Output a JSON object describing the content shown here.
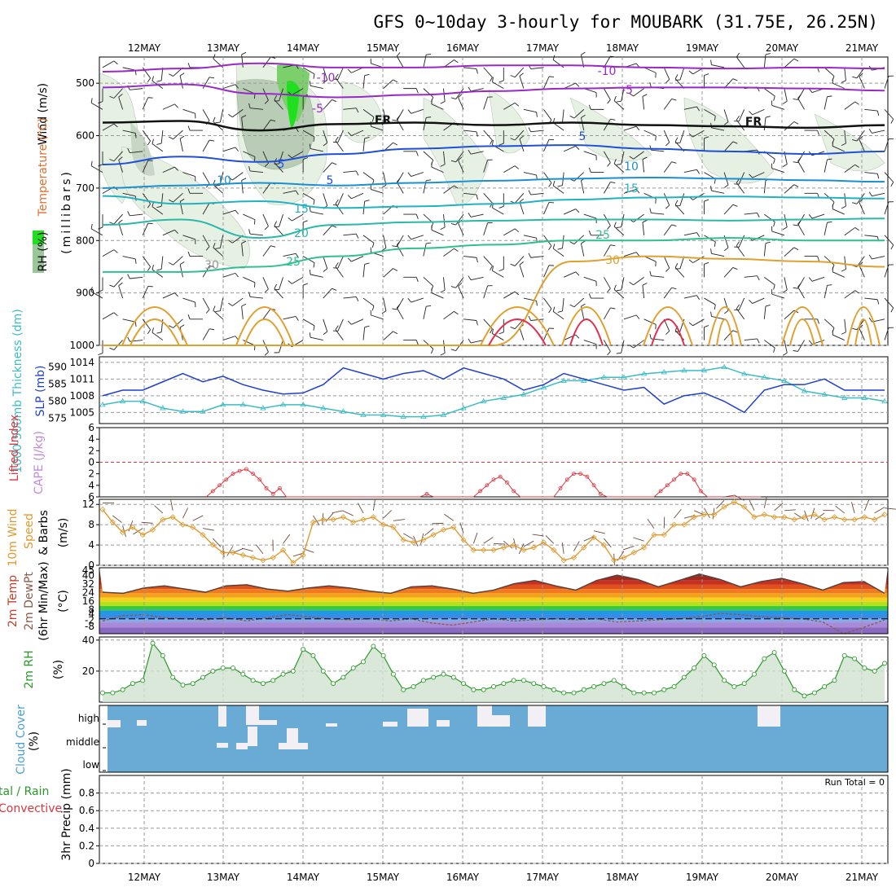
{
  "title": "GFS 0~10day 3-hourly for MOUBARK (31.75E, 26.25N)",
  "dates": [
    "12MAY",
    "13MAY",
    "14MAY",
    "15MAY",
    "16MAY",
    "17MAY",
    "18MAY",
    "19MAY",
    "20MAY",
    "21MAY"
  ],
  "panel_labels": {
    "upper": {
      "rh": "RH (%)",
      "temp": "Temperature (°C)",
      "wind": "Wind (m/s)",
      "pressure": "(millibars)"
    },
    "slp": {
      "thick": "1000-500mb Thickness (dm)",
      "slp": "SLP (mb)"
    },
    "cape": {
      "li": "Lifted Index",
      "cape": "CAPE (J/kg)"
    },
    "wind10": {
      "l1": "10m Wind",
      "l2": "Speed",
      "l3": "& Barbs",
      "unit": "(m/s)"
    },
    "temp2m": {
      "l1": "2m Temp",
      "l2": "2m DewPt",
      "l3": "(6hr Min/Max)",
      "unit": "(°C)"
    },
    "rh2m": {
      "label": "2m RH",
      "unit": "(%)"
    },
    "cloud": {
      "label": "Cloud Cover",
      "unit": "(%)"
    },
    "precip": {
      "l1": "tal / Rain",
      "l2": "Convective",
      "l3": "3hr Precip (mm)",
      "run_total": "Run Total = 0"
    }
  },
  "colors": {
    "slp": "#1f3fcf",
    "thickness": "#3bbcc4",
    "li": "#e0343c",
    "wind_speed": "#e09a30",
    "rh": "#2a9a2a",
    "rh_fill": "#cfe2cf",
    "cloud": "#6aabd6",
    "cloud_gap": "#f2f0f4",
    "dewpt": "#8a5a4a",
    "temp_fill": "#5a4038"
  },
  "chart_data": [
    {
      "type": "contour",
      "name": "upper_air",
      "ylim": [
        1000,
        450
      ],
      "yticks": [
        500,
        600,
        700,
        800,
        900,
        1000
      ],
      "contour_labels": [
        "-10",
        "-10",
        "-5",
        "-5",
        "FR",
        "FR",
        "5",
        "5",
        "5",
        "10",
        "10",
        "15",
        "15",
        "20",
        "25",
        "25",
        "30",
        "30"
      ],
      "temperature_lines": [
        {
          "label": "-10",
          "color": "#9a28c8",
          "p": [
            478,
            472,
            462,
            470,
            470,
            466,
            466,
            470,
            472,
            470,
            472
          ]
        },
        {
          "label": "-5",
          "color": "#9a28c8",
          "p": [
            508,
            502,
            520,
            527,
            522,
            515,
            510,
            508,
            508,
            510,
            514
          ]
        },
        {
          "label": "FR",
          "color": "#111111",
          "p": [
            575,
            572,
            590,
            578,
            575,
            580,
            575,
            580,
            582,
            585,
            580
          ]
        },
        {
          "label": "5",
          "color": "#1f4fd8",
          "p": [
            655,
            640,
            650,
            635,
            625,
            620,
            618,
            625,
            630,
            635,
            630
          ]
        },
        {
          "label": "10",
          "color": "#1a90d0",
          "p": [
            700,
            695,
            690,
            695,
            690,
            686,
            682,
            680,
            682,
            685,
            688
          ]
        },
        {
          "label": "15",
          "color": "#21b2c0",
          "p": [
            715,
            730,
            725,
            738,
            735,
            730,
            722,
            718,
            716,
            718,
            720
          ]
        },
        {
          "label": "20",
          "color": "#2ab8a8",
          "p": [
            770,
            760,
            795,
            770,
            765,
            762,
            760,
            760,
            762,
            760,
            758
          ]
        },
        {
          "label": "25",
          "color": "#2fbf90",
          "p": [
            860,
            860,
            850,
            830,
            815,
            808,
            800,
            800,
            795,
            800,
            800
          ]
        },
        {
          "label": "30",
          "color": "#e0a030",
          "p": [
            1000,
            1000,
            1000,
            1000,
            1000,
            1000,
            840,
            830,
            835,
            840,
            850
          ]
        }
      ]
    },
    {
      "type": "line",
      "name": "slp_thickness",
      "x": [
        0,
        6,
        12,
        18,
        24,
        30,
        36,
        42,
        48,
        54,
        60,
        66,
        72,
        78,
        84,
        90,
        96,
        102,
        108,
        114,
        120,
        126,
        132,
        138,
        144,
        150,
        156,
        162,
        168,
        174,
        180,
        186,
        192,
        198,
        204,
        210,
        216,
        222,
        228,
        234
      ],
      "series": [
        {
          "name": "SLP (mb)",
          "ylim": [
            1003,
            1015
          ],
          "yticks": [
            1005,
            1008,
            1011,
            1014
          ],
          "values": [
            1008,
            1009,
            1009,
            1010.5,
            1012,
            1010.5,
            1011.5,
            1010,
            1009,
            1008.3,
            1008.5,
            1010,
            1013,
            1012,
            1011,
            1012,
            1012.5,
            1011,
            1013,
            1012,
            1011,
            1009,
            1010,
            1012,
            1011,
            1010,
            1009,
            1009.5,
            1006.5,
            1008,
            1008.5,
            1007,
            1005,
            1009,
            1010,
            1010,
            1011,
            1009,
            1009,
            1009
          ]
        },
        {
          "name": "1000-500mb Thickness (dm)",
          "ylim": [
            573.5,
            593
          ],
          "yticks": [
            575,
            580,
            585,
            590
          ],
          "values": [
            579,
            580,
            580,
            578,
            577,
            577,
            579,
            579,
            578,
            579,
            579,
            578,
            577,
            576,
            576,
            575.5,
            575.5,
            576,
            578,
            580,
            581,
            582,
            584,
            586,
            586,
            587,
            587,
            588,
            588.5,
            589,
            589,
            590,
            588,
            587,
            586,
            583,
            582,
            581,
            581,
            580
          ]
        }
      ]
    },
    {
      "type": "line",
      "name": "lifted_index",
      "ylim": [
        6,
        -6
      ],
      "yticks": [
        6,
        4,
        2,
        0,
        -2,
        -4,
        -6
      ],
      "x": [
        31,
        33,
        35,
        37,
        39,
        41,
        43,
        45,
        47,
        49,
        51,
        53,
        55,
        57,
        59,
        61,
        63,
        65,
        67,
        69,
        71,
        73,
        75,
        77,
        79,
        81,
        83,
        85,
        87,
        89,
        91,
        93,
        95,
        97,
        99,
        101,
        103,
        105,
        107,
        109,
        111,
        113,
        115,
        117,
        119,
        121,
        123,
        125,
        127,
        129,
        131,
        133,
        135,
        137,
        139,
        141,
        143,
        145,
        147,
        149,
        151,
        153,
        155,
        157,
        159,
        161,
        163,
        165,
        167,
        169,
        171,
        173,
        175,
        177,
        179,
        181,
        183,
        185,
        187,
        189,
        191,
        193,
        195,
        197
      ],
      "values": [
        6,
        5,
        4,
        3,
        2,
        1.5,
        1.2,
        2,
        3,
        4.5,
        5.5,
        4.5,
        6,
        6,
        6,
        6,
        6,
        6,
        6,
        6,
        6,
        6,
        6,
        6,
        6,
        6,
        6,
        6,
        6,
        6,
        6,
        6,
        6,
        5.5,
        6,
        6,
        6,
        6,
        6,
        6,
        6,
        5,
        4,
        3,
        2.5,
        3.5,
        5,
        6,
        6,
        6,
        6,
        6,
        6,
        4.5,
        3,
        2,
        2,
        2.5,
        4,
        5.5,
        6,
        6,
        6,
        6,
        6,
        6,
        6,
        6,
        5,
        4,
        3,
        2,
        2,
        3,
        5,
        6,
        6,
        6,
        6,
        6,
        6,
        6,
        6,
        6
      ]
    },
    {
      "type": "line",
      "name": "wind_10m",
      "ylim": [
        0,
        13
      ],
      "yticks": [
        0,
        4,
        8,
        12
      ],
      "x": [
        0,
        3,
        6,
        9,
        12,
        15,
        18,
        21,
        24,
        27,
        30,
        33,
        36,
        39,
        42,
        45,
        48,
        51,
        54,
        57,
        60,
        63,
        66,
        69,
        72,
        75,
        78,
        81,
        84,
        87,
        90,
        93,
        96,
        99,
        102,
        105,
        108,
        111,
        114,
        117,
        120,
        123,
        126,
        129,
        132,
        135,
        138,
        141,
        144,
        147,
        150,
        153,
        156,
        159,
        162,
        165,
        168,
        171,
        174,
        177,
        180,
        183,
        186,
        189,
        192,
        195,
        198,
        201,
        204,
        207,
        210,
        213,
        216,
        219,
        222,
        225,
        228,
        231,
        234
      ],
      "values": [
        11,
        8.5,
        6.5,
        7.5,
        6,
        7,
        9,
        9.5,
        8,
        7.5,
        6,
        4,
        2.5,
        2.5,
        2,
        1.5,
        1,
        1.5,
        3,
        0.5,
        2,
        8.5,
        9,
        9,
        9.5,
        8.5,
        9,
        9.5,
        8,
        7.5,
        5,
        4.5,
        5,
        6,
        7,
        7.5,
        5,
        3,
        3,
        3,
        3.5,
        4,
        3,
        3.5,
        4.5,
        3,
        1,
        1.5,
        3.5,
        5.5,
        4,
        1,
        1.5,
        2.5,
        3.5,
        6,
        6,
        8,
        8,
        9.5,
        10,
        10,
        11.5,
        12.5,
        11.5,
        9.5,
        10,
        9.5,
        9.5,
        9,
        9.5,
        10,
        9,
        9.5,
        9,
        9,
        9.5,
        9,
        10
      ]
    },
    {
      "type": "area",
      "name": "temp_2m",
      "yticks": [
        -8,
        -2,
        4,
        8,
        16,
        24,
        32,
        40,
        45
      ],
      "ylim": [
        -14,
        48
      ],
      "temp": [
        25,
        24,
        29,
        31,
        28,
        25,
        31,
        32,
        28,
        26,
        29,
        31,
        29,
        26,
        24,
        30,
        31,
        28,
        24,
        27,
        33,
        36,
        31,
        27,
        36,
        41,
        37,
        30,
        36,
        42,
        37,
        30,
        35,
        38,
        33,
        27,
        34,
        35,
        24
      ],
      "dewpt": [
        -2,
        3,
        4,
        1,
        0,
        -1,
        1,
        -2,
        1,
        4,
        2,
        0,
        -1,
        0,
        -2,
        0,
        -4,
        -6,
        -3,
        0,
        -2,
        -1,
        0,
        -1,
        0,
        -3,
        -2,
        -1,
        0,
        2,
        5,
        4,
        2,
        1,
        0,
        -3,
        -14,
        -8,
        -1
      ]
    },
    {
      "type": "area",
      "name": "rh_2m",
      "ylim": [
        0,
        42
      ],
      "yticks": [
        20,
        40
      ],
      "x": [
        0,
        3,
        6,
        9,
        12,
        15,
        18,
        21,
        24,
        27,
        30,
        33,
        36,
        39,
        42,
        45,
        48,
        51,
        54,
        57,
        60,
        63,
        66,
        69,
        72,
        75,
        78,
        81,
        84,
        87,
        90,
        93,
        96,
        99,
        102,
        105,
        108,
        111,
        114,
        117,
        120,
        123,
        126,
        129,
        132,
        135,
        138,
        141,
        144,
        147,
        150,
        153,
        156,
        159,
        162,
        165,
        168,
        171,
        174,
        177,
        180,
        183,
        186,
        189,
        192,
        195,
        198,
        201,
        204,
        207,
        210,
        213,
        216,
        219,
        222,
        225,
        228,
        231,
        234
      ],
      "values": [
        6,
        6,
        8,
        12,
        14,
        38,
        30,
        16,
        11,
        12,
        16,
        20,
        22,
        22,
        18,
        14,
        12,
        14,
        18,
        20,
        34,
        30,
        20,
        12,
        16,
        22,
        26,
        36,
        30,
        18,
        8,
        10,
        14,
        16,
        18,
        16,
        12,
        8,
        8,
        10,
        12,
        14,
        14,
        12,
        10,
        8,
        6,
        6,
        8,
        10,
        12,
        14,
        10,
        6,
        6,
        6,
        8,
        10,
        16,
        22,
        30,
        24,
        14,
        10,
        12,
        18,
        28,
        32,
        20,
        8,
        4,
        6,
        10,
        14,
        30,
        28,
        22,
        20,
        25
      ]
    },
    {
      "type": "bar",
      "name": "cloud_cover",
      "levels": [
        "high",
        "middle",
        "low"
      ],
      "high": [
        10,
        2,
        0,
        12,
        5,
        0,
        0,
        0,
        0,
        0,
        0,
        0,
        0,
        0,
        0,
        0,
        0,
        0,
        0,
        0,
        0,
        0,
        0,
        0,
        0,
        0,
        0,
        0,
        0,
        0,
        0,
        0,
        0,
        0,
        0,
        0,
        0,
        0,
        0,
        0,
        0,
        0,
        0,
        0,
        0,
        0,
        0,
        0,
        0,
        0,
        0,
        0,
        0,
        0,
        0,
        0,
        0,
        0,
        0,
        0,
        0,
        0,
        0,
        0,
        0,
        0,
        0,
        0,
        0,
        0,
        0,
        0,
        0,
        0,
        0,
        0,
        0,
        0,
        0
      ],
      "middle": [
        0,
        0,
        0,
        0,
        0,
        0,
        0,
        0,
        0,
        0,
        0,
        0,
        0,
        0,
        0,
        0,
        0,
        0,
        0,
        0,
        0,
        0,
        0,
        0,
        0,
        0,
        0,
        0,
        0,
        0,
        0,
        0,
        0,
        0,
        0,
        0,
        0,
        0,
        0,
        0,
        0,
        0,
        0,
        0,
        0,
        0,
        0,
        0,
        0,
        0,
        0,
        0,
        0,
        0,
        0,
        0,
        0,
        0,
        0,
        0,
        0,
        0,
        0,
        0,
        0,
        0,
        0,
        0,
        0,
        0,
        0,
        0,
        0,
        0,
        0,
        0,
        0,
        0,
        0
      ]
    },
    {
      "type": "bar",
      "name": "precip_3hr",
      "ylim": [
        0,
        1
      ],
      "yticks": [
        0,
        0.2,
        0.4,
        0.6,
        0.8
      ],
      "values": []
    }
  ]
}
